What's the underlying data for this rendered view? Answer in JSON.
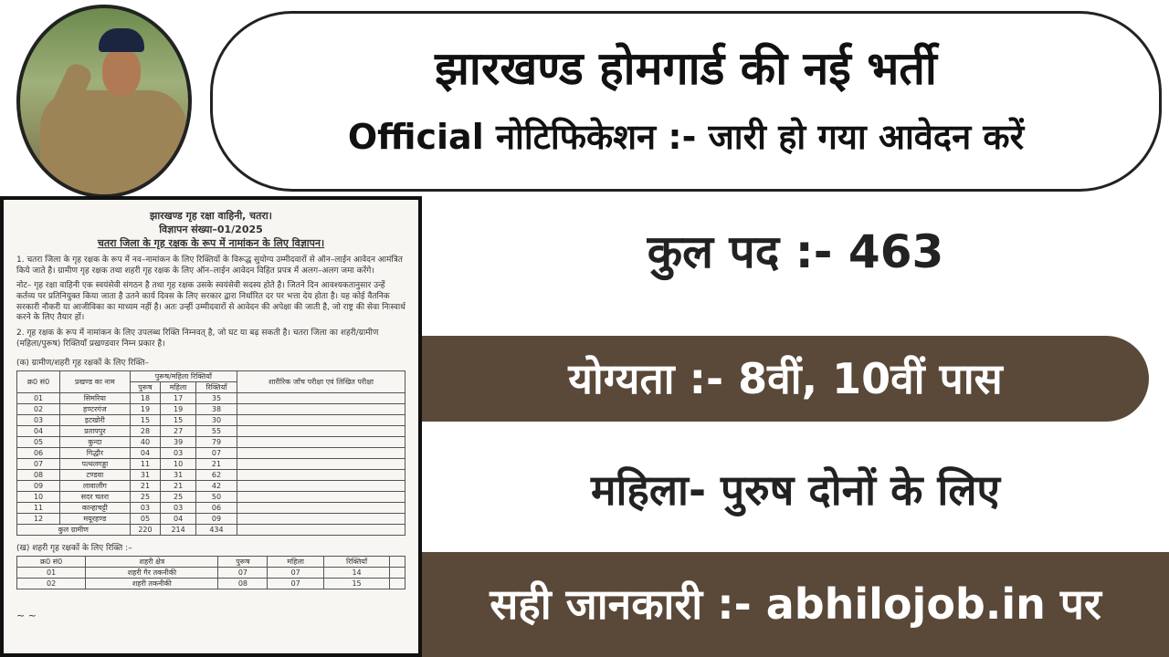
{
  "header": {
    "title": "झारखण्ड होमगार्ड की नई भर्ती",
    "subtitle": "Official नोटिफिकेशन :- जारी हो गया आवेदन करें"
  },
  "posts": "कुल पद :- 463",
  "qualification": "योग्यता :- 8वीं, 10वीं पास",
  "gender": "महिला- पुरुष दोनों के लिए",
  "footer": "सही जानकारी :- abhilojob.in पर",
  "colors": {
    "band": "#5a4838",
    "text": "#222222"
  },
  "document": {
    "org": "झारखण्ड गृह रक्षा वाहिनी, चतरा।",
    "adv_no": "विज्ञापन संख्या–01/2025",
    "heading": "चतरा जिला के गृह रक्षक के रूप में नामांकन के लिए विज्ञापन।",
    "para1": "1. चतरा जिला के गृह रक्षक के रूप में नव–नामांकन के लिए रिक्तियों के विरूद्ध सुयोग्य उम्मीदवारों से ऑन–लाईन आवेदन आमंत्रित किये जाते है। ग्रामीण गृह रक्षक तथा शहरी गृह रक्षक के लिए ऑन–लाईन आवेदन विहित प्रपत्र में अलग–अलग जमा करेंगे।",
    "note": "नोट– गृह रक्षा वाहिनी एक स्वयंसेवी संगठन है तथा गृह रक्षक उसके स्वयंसेवी सदस्य होते है। जितने दिन आवश्यकतानुसार उन्हें कर्तव्य पर प्रतिनियुक्त किया जाता है उतने कार्य दिवस के लिए सरकार द्वारा निर्धारित दर पर भत्ता देय होता है। यह कोई वैतनिक सरकारी नौकरी या आजीविका का माध्यम नहीं है। अतः उन्हीं उम्मीदवारों से आवेदन की अपेक्षा की जाती है, जो राष्ट्र की सेवा निःस्वार्थ करने के लिए तैयार हों।",
    "para2": "2. गृह रक्षक के रूप में नामांकन के लिए उपलब्ध रिक्ति निम्नवत् है, जो घट या बढ़ सकती है। चतरा जिला का शहरी/ग्रामीण (महिला/पुरूष) रिक्तियाँ प्रखण्डवार निम्न प्रकार है।",
    "rural_title": "(क) ग्रामीण/शहरी गृह रक्षकों के लिए रिक्ति–",
    "rural_headers": {
      "sn": "क्र0 सं0",
      "block": "प्रखण्ड का नाम",
      "group": "पुरूष/महिला रिक्तियाँ",
      "male": "पुरूष",
      "female": "महिला",
      "total": "रिक्तियाँ",
      "exam": "शारीरिक जाँच परीक्षा एवं लिखित परीक्षा"
    },
    "rural_rows": [
      [
        "01",
        "सिमरिया",
        "18",
        "17",
        "35"
      ],
      [
        "02",
        "हण्टरगंज",
        "19",
        "19",
        "38"
      ],
      [
        "03",
        "इटखोरी",
        "15",
        "15",
        "30"
      ],
      [
        "04",
        "प्रतापपुर",
        "28",
        "27",
        "55"
      ],
      [
        "05",
        "कुन्दा",
        "40",
        "39",
        "79"
      ],
      [
        "06",
        "गिद्धौर",
        "04",
        "03",
        "07"
      ],
      [
        "07",
        "पत्थलगड्डा",
        "11",
        "10",
        "21"
      ],
      [
        "08",
        "टण्डवा",
        "31",
        "31",
        "62"
      ],
      [
        "09",
        "लावालौंग",
        "21",
        "21",
        "42"
      ],
      [
        "10",
        "सदर चतरा",
        "25",
        "25",
        "50"
      ],
      [
        "11",
        "कान्हाचट्टी",
        "03",
        "03",
        "06"
      ],
      [
        "12",
        "मयूरहण्ड",
        "05",
        "04",
        "09"
      ]
    ],
    "rural_total": [
      "कुल ग्रामीण",
      "220",
      "214",
      "434"
    ],
    "urban_title": "(ख) शहरी गृह रक्षकों के लिए रिक्ति :–",
    "urban_headers": [
      "क्र0 सं0",
      "शहरी क्षेत्र",
      "पुरूष",
      "महिला",
      "रिक्तियाँ"
    ],
    "urban_rows": [
      [
        "01",
        "शहरी गैर तकनीकी",
        "07",
        "07",
        "14"
      ],
      [
        "02",
        "शहरी तकनीकी",
        "08",
        "07",
        "15"
      ]
    ]
  }
}
